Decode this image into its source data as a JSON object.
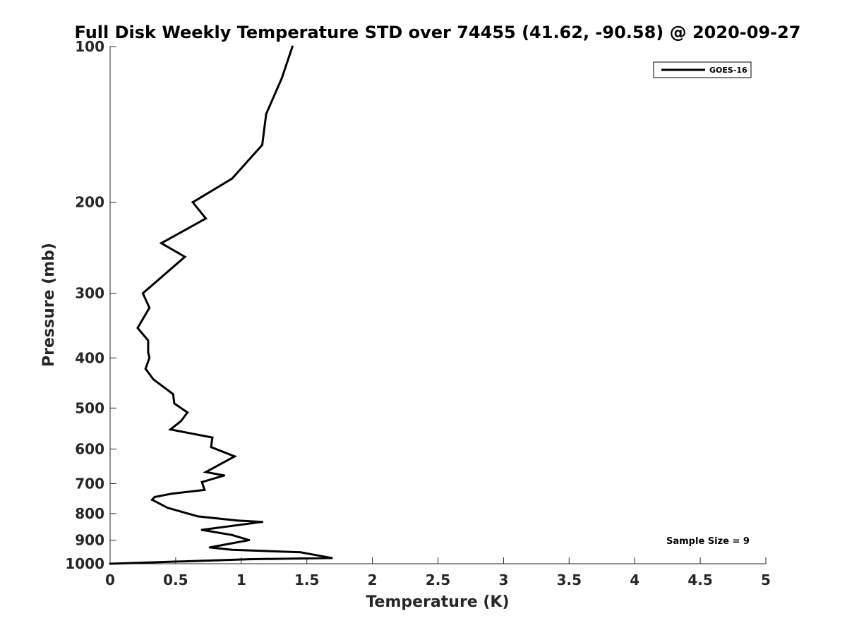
{
  "chart_data": {
    "type": "line",
    "title": "Full Disk Weekly Temperature STD over 74455 (41.62, -90.58) @ 2020-09-27",
    "xlabel": "Temperature (K)",
    "ylabel": "Pressure (mb)",
    "xlim": [
      0,
      5
    ],
    "ylim": [
      100,
      1000
    ],
    "y_scale": "log",
    "y_reversed": true,
    "x_ticks": [
      "0",
      "0.5",
      "1",
      "1.5",
      "2",
      "2.5",
      "3",
      "3.5",
      "4",
      "4.5",
      "5"
    ],
    "y_ticks": [
      "100",
      "200",
      "300",
      "400",
      "500",
      "600",
      "700",
      "800",
      "900",
      "1000"
    ],
    "grid": false,
    "legend_position": "top-right",
    "series": [
      {
        "name": "GOES-16",
        "color": "#000000",
        "x": [
          1.39,
          1.31,
          1.19,
          1.16,
          0.93,
          0.63,
          0.73,
          0.39,
          0.57,
          0.25,
          0.3,
          0.21,
          0.29,
          0.29,
          0.3,
          0.27,
          0.33,
          0.48,
          0.49,
          0.59,
          0.54,
          0.46,
          0.78,
          0.77,
          0.95,
          0.73,
          0.87,
          0.7,
          0.72,
          0.47,
          0.34,
          0.32,
          0.44,
          0.67,
          0.97,
          1.16,
          0.7,
          0.93,
          1.06,
          0.76,
          0.93,
          1.45,
          1.69,
          1.06,
          0.0
        ],
        "y": [
          100,
          115,
          135,
          155,
          180,
          200,
          215,
          240,
          255,
          300,
          320,
          350,
          370,
          390,
          400,
          420,
          440,
          470,
          490,
          510,
          530,
          550,
          570,
          595,
          620,
          665,
          675,
          695,
          720,
          732,
          743,
          752,
          780,
          810,
          825,
          830,
          860,
          880,
          900,
          930,
          940,
          950,
          975,
          980,
          1000
        ]
      }
    ]
  },
  "annotation": {
    "sample_size": "Sample Size = 9"
  }
}
